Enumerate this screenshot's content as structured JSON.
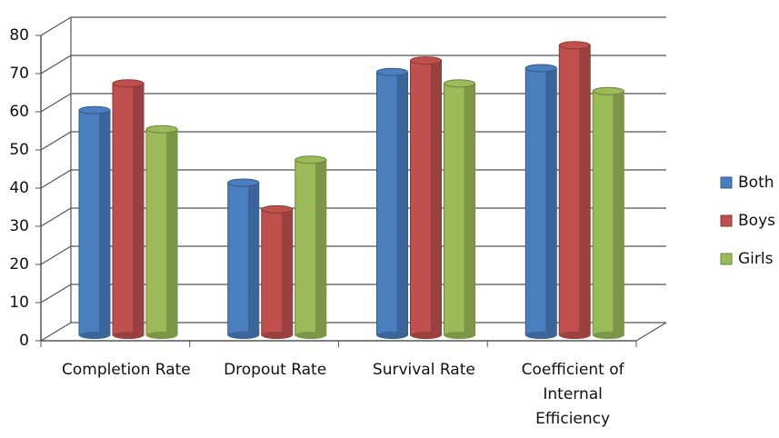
{
  "chart_data": {
    "type": "bar3d",
    "categories": [
      "Completion Rate",
      "Dropout Rate",
      "Survival Rate",
      "Coefficient of Internal Efficiency"
    ],
    "series": [
      {
        "name": "Both",
        "color": "#4a7ebf",
        "values": [
          59,
          40,
          69,
          70
        ]
      },
      {
        "name": "Boys",
        "color": "#c0504d",
        "values": [
          66,
          33,
          72,
          76
        ]
      },
      {
        "name": "Girls",
        "color": "#9bbb59",
        "values": [
          54,
          46,
          66,
          64
        ]
      }
    ],
    "ylim": [
      0,
      80
    ],
    "yticks": [
      0,
      10,
      20,
      30,
      40,
      50,
      60,
      70,
      80
    ],
    "grid": true,
    "legend": "right"
  }
}
